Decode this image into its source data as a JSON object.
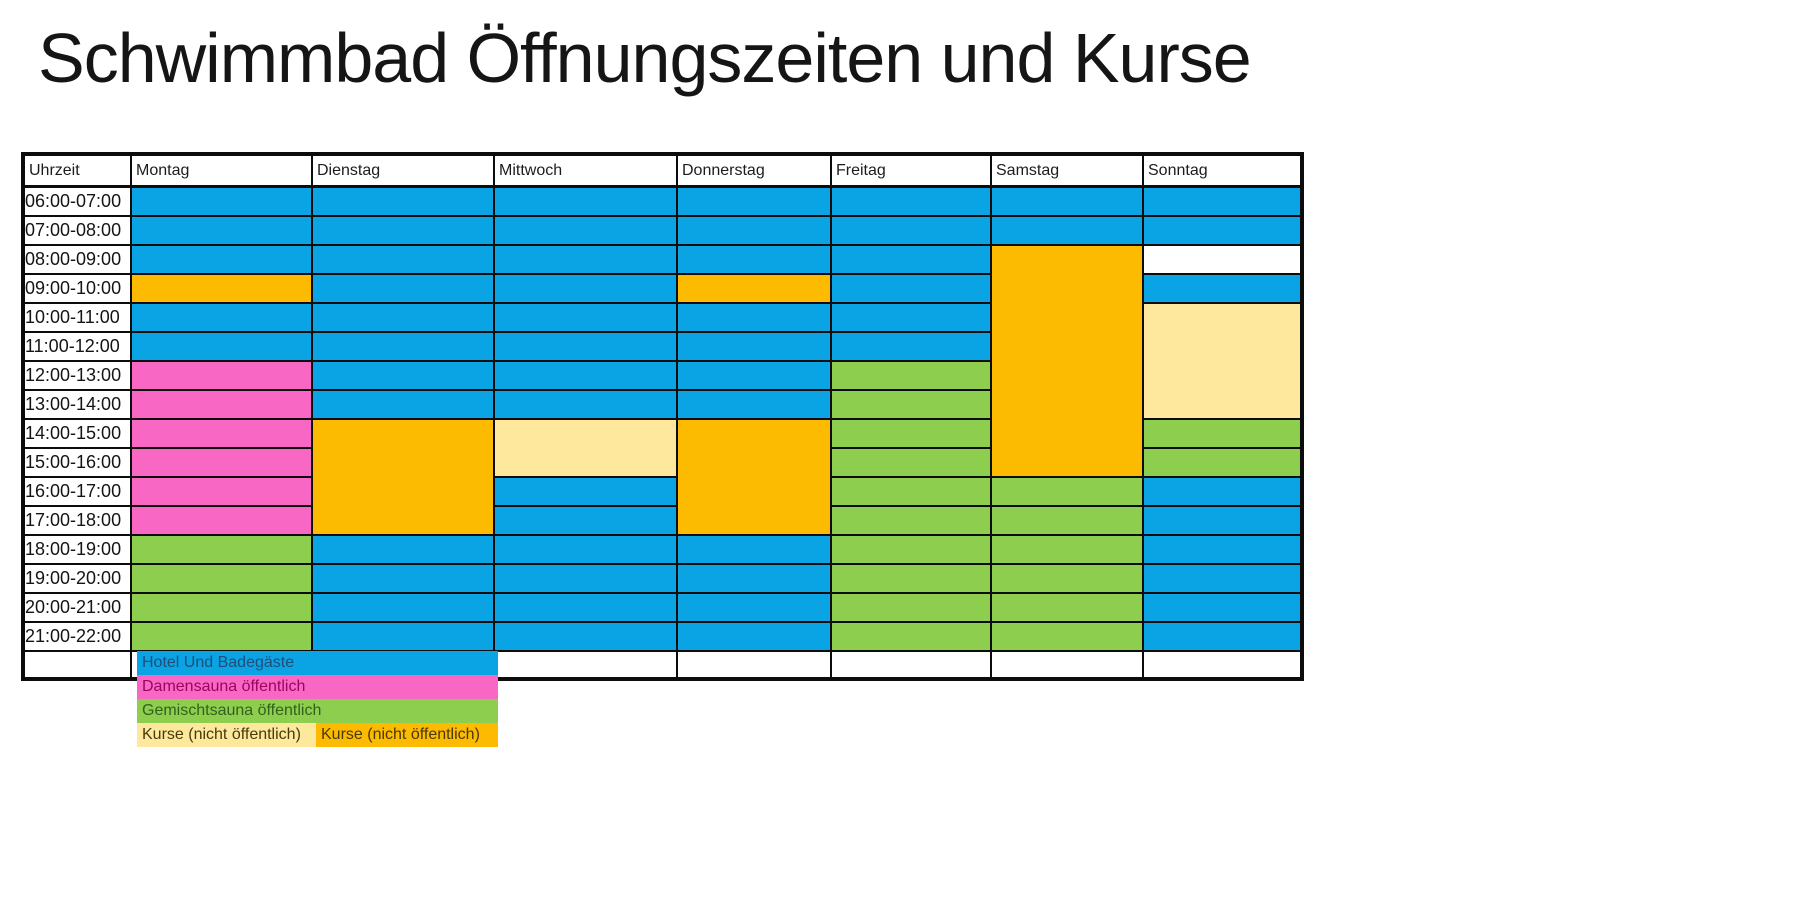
{
  "title": "Schwimmbad Öffnungszeiten und Kurse",
  "colors": {
    "blue": "#0aa3e4",
    "pink": "#f967c5",
    "green": "#8dce4f",
    "orange": "#fcbb00",
    "cream": "#fde89d",
    "white": "#ffffff",
    "border": "#0c0c0c"
  },
  "table": {
    "columns": [
      "Uhrzeit",
      "Montag",
      "Dienstag",
      "Mittwoch",
      "Donnerstag",
      "Freitag",
      "Samstag",
      "Sonntag"
    ],
    "rows": [
      {
        "time": "06:00-07:00",
        "cells": [
          "blue",
          "blue",
          "blue",
          "blue",
          "blue",
          "blue",
          "blue"
        ]
      },
      {
        "time": "07:00-08:00",
        "cells": [
          "blue",
          "blue",
          "blue",
          "blue",
          "blue",
          "blue",
          "blue"
        ]
      },
      {
        "time": "08:00-09:00",
        "cells": [
          "blue",
          "blue",
          "blue",
          "blue",
          "blue",
          {
            "color": "orange",
            "rowspan": 8
          }
        ]
      },
      {
        "time": "09:00-10:00",
        "cells": [
          "orange",
          "blue",
          "blue",
          "orange",
          "blue",
          "blue",
          null
        ]
      },
      {
        "time": "10:00-11:00",
        "cells": [
          "blue",
          "blue",
          "blue",
          "blue",
          "blue",
          {
            "color": "cream",
            "rowspan": 4
          },
          null
        ]
      },
      {
        "time": "11:00-12:00",
        "cells": [
          "blue",
          "blue",
          "blue",
          "blue",
          "blue",
          null,
          null
        ]
      },
      {
        "time": "12:00-13:00",
        "cells": [
          "pink",
          "blue",
          "blue",
          "blue",
          "green",
          null,
          null
        ]
      },
      {
        "time": "13:00-14:00",
        "cells": [
          "pink",
          "blue",
          "blue",
          "blue",
          "green",
          null,
          null
        ]
      },
      {
        "time": "14:00-15:00",
        "cells": [
          "pink",
          {
            "color": "orange",
            "rowspan": 4
          },
          {
            "color": "cream",
            "rowspan": 2
          },
          {
            "color": "orange",
            "rowspan": 4
          },
          "green",
          "green",
          null
        ]
      },
      {
        "time": "15:00-16:00",
        "cells": [
          "pink",
          null,
          null,
          null,
          "green",
          "green",
          null
        ]
      },
      {
        "time": "16:00-17:00",
        "cells": [
          "pink",
          null,
          "blue",
          null,
          "green",
          "green",
          "blue"
        ]
      },
      {
        "time": "17:00-18:00",
        "cells": [
          "pink",
          null,
          "blue",
          null,
          "green",
          "green",
          "blue"
        ]
      },
      {
        "time": "18:00-19:00",
        "cells": [
          "green",
          "blue",
          "blue",
          "blue",
          "green",
          "green",
          "blue"
        ]
      },
      {
        "time": "19:00-20:00",
        "cells": [
          "green",
          "blue",
          "blue",
          "blue",
          "green",
          "green",
          "blue"
        ]
      },
      {
        "time": "20:00-21:00",
        "cells": [
          "green",
          "blue",
          "blue",
          "blue",
          "green",
          "green",
          "blue"
        ]
      },
      {
        "time": "21:00-22:00",
        "cells": [
          "green",
          "blue",
          "blue",
          "blue",
          "green",
          "green",
          "blue"
        ]
      },
      {
        "time": "",
        "cells": [
          "white",
          "white",
          "white",
          "white",
          "white",
          "white",
          "white"
        ]
      }
    ]
  },
  "legend": {
    "items": [
      {
        "label": "Hotel Und Badegäste",
        "color": "blue",
        "text_color": "#1f4e79",
        "slot": "full"
      },
      {
        "label": "Damensauna öffentlich",
        "color": "pink",
        "text_color": "#9c0460",
        "slot": "full"
      },
      {
        "label": "Gemischtsauna öffentlich",
        "color": "green",
        "text_color": "#33611b",
        "slot": "full"
      },
      {
        "label": "Kurse (nicht öffentlich)",
        "color": "cream",
        "text_color": "#473a08",
        "slot": "half-a"
      },
      {
        "label": "Kurse (nicht öffentlich)",
        "color": "orange",
        "text_color": "#473a08",
        "slot": "half-b"
      }
    ]
  }
}
